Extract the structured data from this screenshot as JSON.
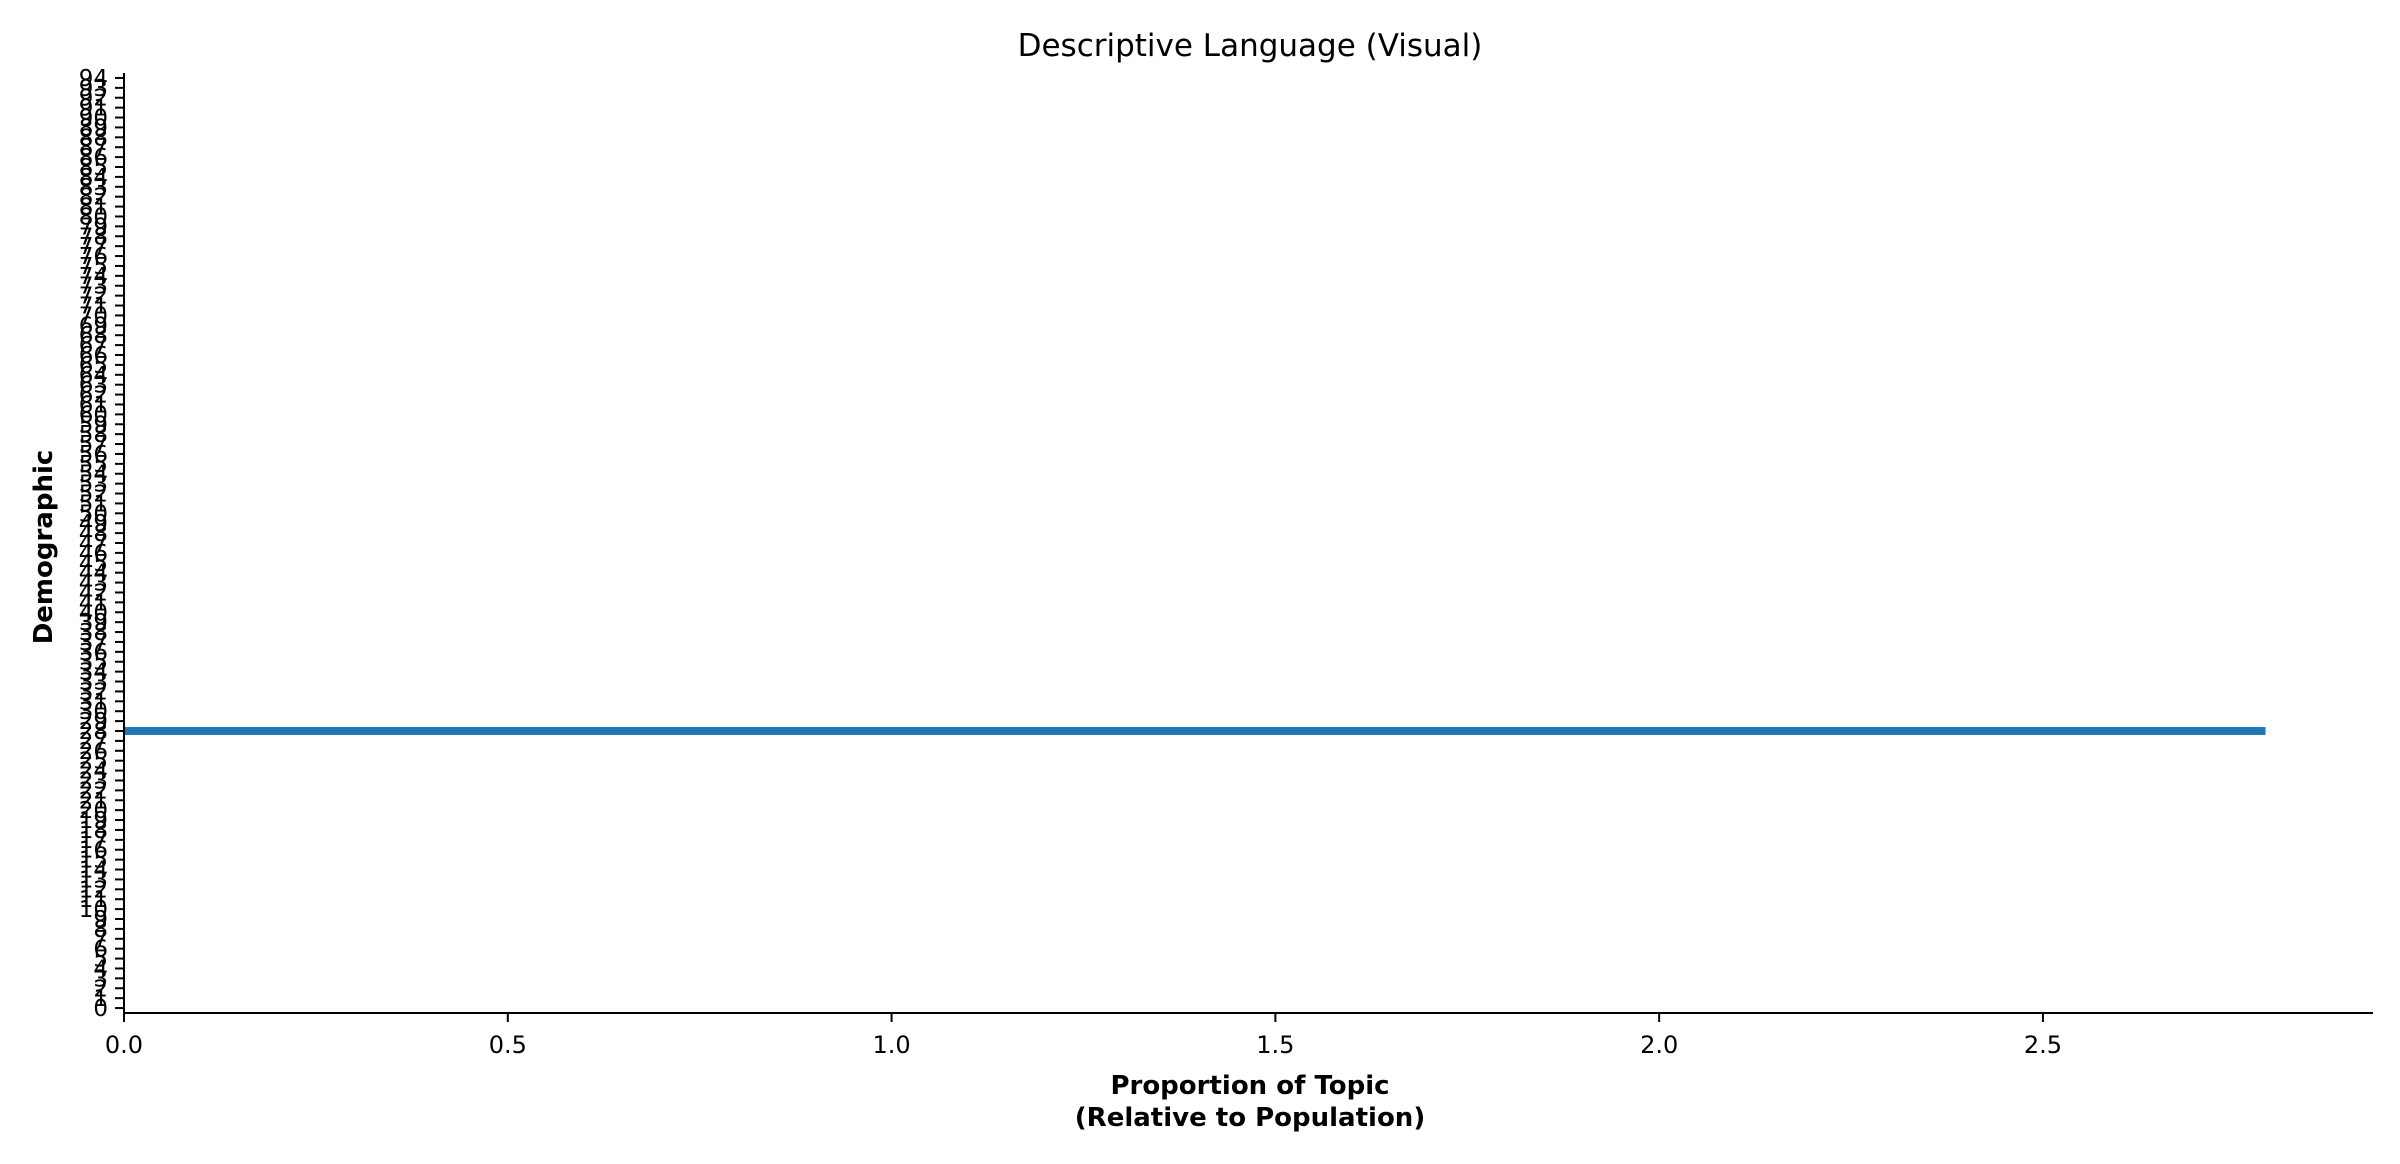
{
  "chart_data": {
    "type": "bar",
    "orientation": "horizontal",
    "title": "Descriptive Language (Visual)",
    "xlabel": "Proportion of Topic\n(Relative to Population)",
    "xlabel_lines": [
      "Proportion of Topic",
      "(Relative to Population)"
    ],
    "ylabel": "Demographic",
    "xlim": [
      0,
      2.93
    ],
    "xticks": [
      "0.0",
      "0.5",
      "1.0",
      "1.5",
      "2.0",
      "2.5"
    ],
    "xtick_values": [
      0,
      0.5,
      1.0,
      1.5,
      2.0,
      2.5
    ],
    "ylim": [
      -0.5,
      94.5
    ],
    "ytick_count": 95,
    "categories_range": [
      0,
      94
    ],
    "bars": [
      {
        "category": 28,
        "value": 2.79
      }
    ],
    "bar_color": "#1f77b4",
    "grid": false,
    "legend": "none"
  }
}
